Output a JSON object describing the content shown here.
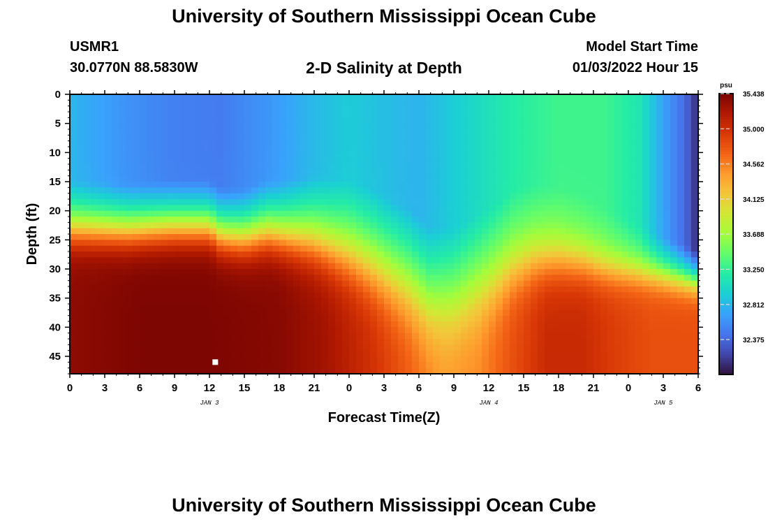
{
  "page": {
    "title": "University of Southern Mississippi Ocean Cube",
    "station": "USMR1",
    "coords": "30.0770N  88.5830W",
    "plot_title": "2-D Salinity at Depth",
    "model_label": "Model Start Time",
    "model_time": "01/03/2022 Hour 15",
    "bottom_title": "University of Southern Mississippi Ocean Cube"
  },
  "chart_data": {
    "type": "heatmap",
    "title": "2-D Salinity at Depth",
    "xlabel": "Forecast Time(Z)",
    "ylabel": "Depth (ft)",
    "x_tick_labels": [
      "0",
      "3",
      "6",
      "9",
      "12",
      "15",
      "18",
      "21",
      "0",
      "3",
      "6",
      "9",
      "12",
      "15",
      "18",
      "21",
      "0",
      "3",
      "6"
    ],
    "date_labels": [
      {
        "label": "JAN 3",
        "tick_index": 4
      },
      {
        "label": "JAN 4",
        "tick_index": 12
      },
      {
        "label": "JAN 5",
        "tick_index": 17
      }
    ],
    "x_hours_range": [
      0,
      54
    ],
    "y_tick_labels": [
      "0",
      "5",
      "10",
      "15",
      "20",
      "25",
      "30",
      "35",
      "40",
      "45"
    ],
    "y_range_ft": [
      0,
      48
    ],
    "colorbar": {
      "unit": "psu",
      "min": 31.94,
      "max": 35.438,
      "tick_labels": [
        "35.438",
        "35.000",
        "34.562",
        "34.125",
        "33.688",
        "33.250",
        "32.812",
        "32.375"
      ],
      "colors": [
        "#30123b",
        "#4145ab",
        "#4675ed",
        "#39a2fc",
        "#1bcfd4",
        "#24eca6",
        "#61fc6c",
        "#a4fc3b",
        "#d1e834",
        "#f3c63a",
        "#fe9b2d",
        "#f36315",
        "#d93806",
        "#b11901",
        "#7a0402"
      ]
    },
    "marker": {
      "hour": 12.5,
      "depth_ft": 46
    },
    "surface_salinity_by_hour": [
      [
        0,
        32.8
      ],
      [
        5,
        32.6
      ],
      [
        9,
        32.5
      ],
      [
        13,
        32.48
      ],
      [
        17,
        32.62
      ],
      [
        21,
        32.82
      ],
      [
        24,
        32.92
      ],
      [
        27,
        32.85
      ],
      [
        30,
        32.78
      ],
      [
        34,
        32.98
      ],
      [
        38,
        33.18
      ],
      [
        42,
        33.3
      ],
      [
        46,
        33.3
      ],
      [
        49,
        33.12
      ],
      [
        51,
        32.7
      ],
      [
        53,
        32.35
      ],
      [
        54,
        32.05
      ]
    ],
    "bottom_salinity_by_hour": [
      [
        0,
        35.35
      ],
      [
        6,
        35.42
      ],
      [
        12,
        35.42
      ],
      [
        18,
        35.38
      ],
      [
        22,
        35.25
      ],
      [
        26,
        35.0
      ],
      [
        29,
        34.75
      ],
      [
        32,
        34.45
      ],
      [
        35,
        34.5
      ],
      [
        38,
        34.8
      ],
      [
        41,
        35.05
      ],
      [
        44,
        35.05
      ],
      [
        47,
        34.9
      ],
      [
        50,
        34.8
      ],
      [
        54,
        34.8
      ]
    ],
    "halocline_depth_ft_by_hour": [
      [
        0,
        24
      ],
      [
        5,
        24.5
      ],
      [
        9,
        24
      ],
      [
        12,
        24
      ],
      [
        13,
        25.5
      ],
      [
        15,
        26
      ],
      [
        17,
        25
      ],
      [
        21,
        26.5
      ],
      [
        24,
        29
      ],
      [
        26,
        31.5
      ],
      [
        29,
        36
      ],
      [
        31,
        40
      ],
      [
        33,
        40
      ],
      [
        36,
        35
      ],
      [
        38,
        31
      ],
      [
        40,
        29
      ],
      [
        42,
        28.5
      ],
      [
        44,
        29
      ],
      [
        46,
        30
      ],
      [
        49,
        31
      ],
      [
        52,
        32.5
      ],
      [
        54,
        33.5
      ]
    ],
    "halocline_thickness_ft_by_hour": [
      [
        0,
        7
      ],
      [
        12,
        7
      ],
      [
        18,
        8
      ],
      [
        24,
        11
      ],
      [
        30,
        13
      ],
      [
        33,
        13
      ],
      [
        38,
        11
      ],
      [
        44,
        9
      ],
      [
        50,
        6
      ],
      [
        54,
        5
      ]
    ],
    "mid_salinity_by_hour": [
      [
        0,
        33.6
      ],
      [
        12,
        33.6
      ],
      [
        18,
        33.65
      ],
      [
        24,
        33.7
      ],
      [
        30,
        33.8
      ],
      [
        33,
        33.8
      ],
      [
        38,
        33.7
      ],
      [
        44,
        33.6
      ],
      [
        54,
        33.4
      ]
    ]
  }
}
